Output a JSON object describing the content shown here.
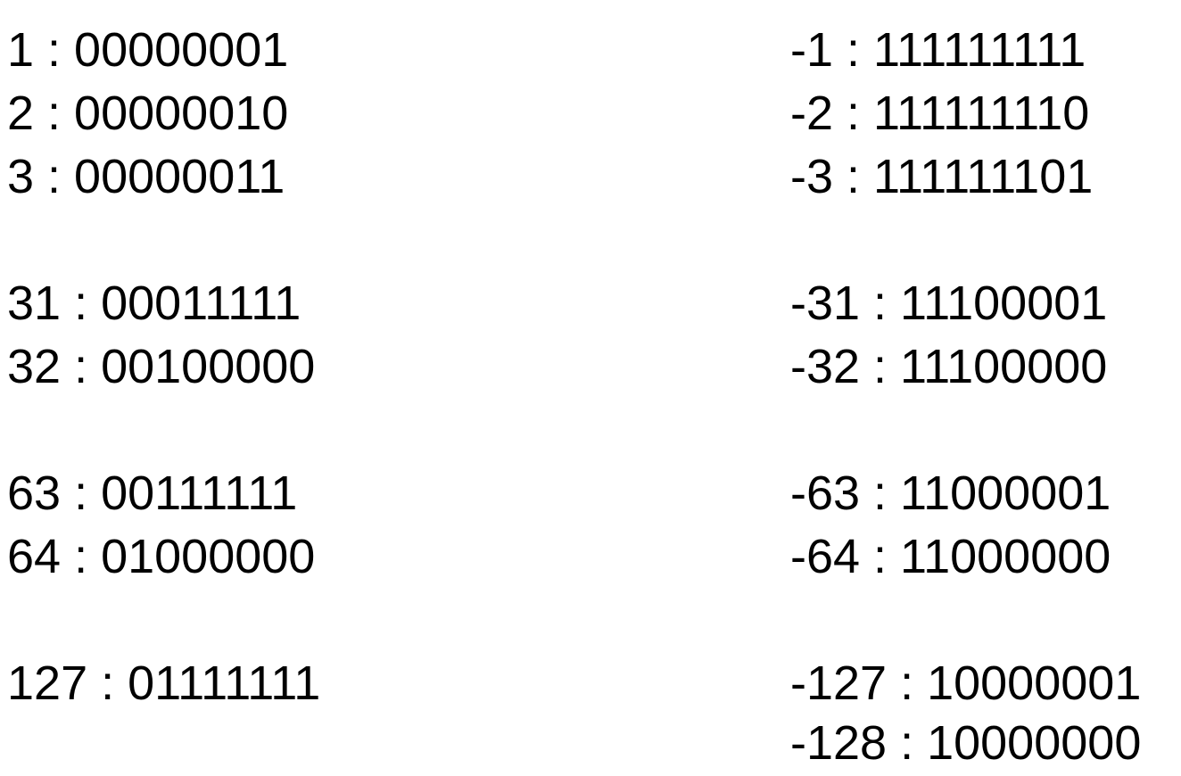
{
  "positive": [
    "1 : 00000001",
    "2 : 00000010",
    "3 : 00000011",
    "31 : 00011111",
    "32 : 00100000",
    "63 : 00111111",
    "64 : 01000000",
    "127 : 01111111"
  ],
  "negative": [
    "-1 : 111111111",
    "-2 : 111111110",
    "-3 : 111111101",
    "-31 : 11100001",
    "-32 : 11100000",
    "-63 : 11000001",
    "-64 : 11000000",
    "-127 : 10000001",
    "-128 : 10000000"
  ]
}
